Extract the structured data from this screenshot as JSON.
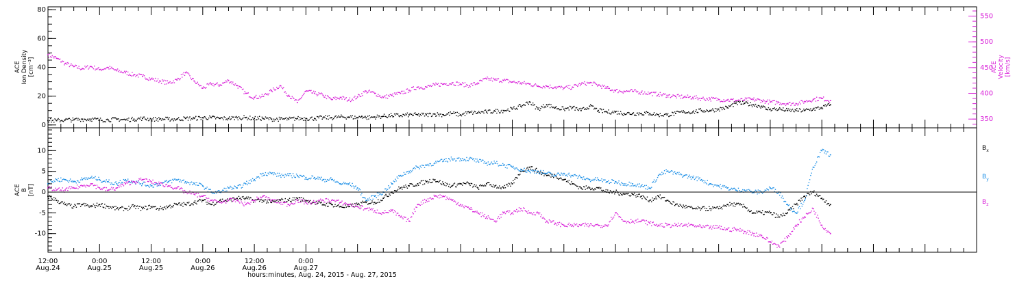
{
  "chart_data": [
    {
      "type": "scatter",
      "panel": "top",
      "ylabel_lines": [
        "ACE",
        "Ion Density",
        "[cm⁻³]"
      ],
      "ylim": [
        -2,
        82
      ],
      "yticks": [
        0,
        20,
        40,
        60,
        80
      ],
      "ylabel_right_lines": [
        "ACE",
        "Velocity",
        "[km/s]"
      ],
      "y2lim": [
        333,
        568
      ],
      "y2ticks": [
        350,
        400,
        450,
        500,
        550
      ],
      "grid": false,
      "series": [
        {
          "axis": "left",
          "color": "#000000",
          "x": [
            0,
            2,
            4,
            6,
            8,
            10,
            12,
            14,
            16,
            18,
            20,
            22,
            24,
            26,
            28,
            30,
            32,
            34,
            36,
            38,
            40,
            42,
            44,
            46,
            48,
            50,
            52,
            54,
            56,
            58,
            60,
            62,
            64,
            66,
            68,
            70,
            72,
            73,
            74,
            76,
            78,
            80,
            82,
            84,
            86,
            88,
            90,
            92,
            94,
            96,
            98,
            100,
            102,
            104,
            106,
            108,
            110,
            112,
            114,
            116,
            118,
            120,
            122,
            124,
            126,
            128,
            130,
            132,
            134,
            136,
            138,
            140,
            142,
            144,
            146,
            148,
            150,
            152,
            154,
            156,
            158,
            160,
            162,
            164,
            166,
            167,
            168,
            170,
            172,
            174,
            176,
            178,
            180,
            182
          ],
          "y": [
            3,
            3,
            3.5,
            3.5,
            4,
            4,
            3.5,
            3.5,
            4,
            3.5,
            4,
            4.5,
            4,
            4,
            4,
            4,
            4.5,
            4.5,
            5,
            5,
            4.5,
            4.5,
            5,
            5,
            4.5,
            4.5,
            4,
            4,
            4,
            4.5,
            4.5,
            4.5,
            5,
            5,
            5.5,
            5.5,
            5,
            6,
            5,
            5.5,
            6,
            6.5,
            6.5,
            7,
            7,
            7,
            7.5,
            7,
            8,
            7,
            8.5,
            8.5,
            9,
            9.5,
            10,
            11,
            13,
            16,
            11,
            14,
            12,
            11,
            12,
            10,
            13,
            10,
            9,
            9,
            8,
            8,
            8,
            8,
            7,
            7,
            8,
            9,
            9,
            10,
            10,
            11,
            12,
            15,
            15,
            14,
            13,
            11,
            11,
            11,
            10,
            10,
            10,
            11,
            12,
            14
          ]
        },
        {
          "axis": "right",
          "color": "#d81ed8",
          "x": [
            0,
            2,
            4,
            6,
            8,
            10,
            12,
            14,
            16,
            18,
            20,
            22,
            24,
            26,
            28,
            30,
            32,
            34,
            36,
            38,
            40,
            42,
            44,
            46,
            48,
            50,
            52,
            54,
            56,
            58,
            60,
            62,
            64,
            66,
            68,
            70,
            72,
            74,
            76,
            78,
            80,
            82,
            84,
            86,
            88,
            90,
            92,
            94,
            96,
            98,
            100,
            102,
            104,
            106,
            108,
            110,
            112,
            114,
            116,
            118,
            120,
            122,
            124,
            126,
            128,
            130,
            132,
            134,
            136,
            138,
            140,
            142,
            144,
            146,
            148,
            150,
            152,
            154,
            156,
            158,
            160,
            162,
            164,
            166,
            167,
            168,
            170,
            172,
            174,
            176,
            178,
            180,
            182
          ],
          "y": [
            475,
            468,
            458,
            452,
            448,
            452,
            446,
            450,
            444,
            440,
            436,
            433,
            428,
            424,
            420,
            426,
            440,
            424,
            410,
            418,
            416,
            425,
            415,
            400,
            392,
            394,
            405,
            415,
            396,
            382,
            404,
            400,
            396,
            388,
            392,
            387,
            393,
            404,
            400,
            392,
            396,
            400,
            406,
            412,
            412,
            416,
            418,
            420,
            418,
            415,
            420,
            428,
            426,
            425,
            422,
            420,
            418,
            414,
            414,
            412,
            410,
            412,
            418,
            420,
            416,
            410,
            405,
            404,
            404,
            402,
            400,
            398,
            396,
            394,
            393,
            392,
            390,
            389,
            388,
            387,
            386,
            387,
            388,
            386,
            384,
            383,
            382,
            380,
            380,
            384,
            388,
            390,
            386
          ]
        }
      ]
    },
    {
      "type": "scatter",
      "panel": "bottom",
      "ylabel_lines": [
        "ACE",
        "B",
        "[nT]"
      ],
      "ylim": [
        -14.5,
        15.5
      ],
      "yticks": [
        -10,
        -5,
        0,
        5,
        10
      ],
      "zero_line": true,
      "grid": false,
      "legend_position": "right",
      "legend_entries": [
        {
          "label": "B",
          "sub": "x",
          "color": "#000000"
        },
        {
          "label": "B",
          "sub": "y",
          "color": "#1a8ee6"
        },
        {
          "label": "B",
          "sub": "z",
          "color": "#d81ed8"
        }
      ],
      "series": [
        {
          "name": "Bx",
          "color": "#000000",
          "x": [
            0,
            2,
            4,
            6,
            8,
            10,
            12,
            14,
            16,
            18,
            20,
            22,
            24,
            26,
            28,
            30,
            32,
            34,
            36,
            38,
            40,
            42,
            44,
            46,
            48,
            50,
            52,
            54,
            56,
            58,
            60,
            62,
            64,
            66,
            68,
            70,
            72,
            74,
            76,
            78,
            80,
            82,
            84,
            86,
            88,
            90,
            92,
            94,
            96,
            98,
            100,
            102,
            104,
            106,
            108,
            110,
            112,
            114,
            116,
            118,
            120,
            122,
            124,
            126,
            128,
            130,
            132,
            134,
            136,
            138,
            140,
            142,
            144,
            146,
            148,
            150,
            152,
            154,
            156,
            158,
            160,
            162,
            164,
            166,
            168,
            170,
            172,
            174,
            176,
            178,
            180,
            182
          ],
          "y": [
            -1,
            -2,
            -3,
            -3.5,
            -3,
            -3.5,
            -3,
            -3.5,
            -4,
            -4,
            -3.5,
            -4,
            -3.5,
            -4,
            -3.5,
            -3,
            -3,
            -2.5,
            -2,
            -3,
            -2,
            -2,
            -1.5,
            -1.5,
            -2,
            -2,
            -2.5,
            -2,
            -2,
            -1.5,
            -2,
            -2.5,
            -3,
            -3,
            -3.5,
            -3.5,
            -3,
            -2.5,
            -2.5,
            -1.5,
            0,
            1,
            1.5,
            2,
            2.5,
            3,
            2,
            1.5,
            2,
            2,
            1,
            2,
            1.5,
            1,
            2,
            5,
            6,
            5,
            4,
            4,
            3,
            2,
            1,
            1,
            1,
            0,
            0,
            -0.5,
            -0.5,
            -1,
            -2,
            -1,
            -2,
            -3,
            -3.5,
            -4,
            -4,
            -4,
            -4,
            -3,
            -3,
            -3.5,
            -5,
            -5,
            -5,
            -6,
            -5,
            -3,
            -1,
            0,
            -1.5,
            -3
          ]
        },
        {
          "name": "By",
          "color": "#1a8ee6",
          "x": [
            0,
            2,
            4,
            6,
            8,
            10,
            12,
            14,
            16,
            18,
            20,
            22,
            24,
            26,
            28,
            30,
            32,
            34,
            36,
            38,
            40,
            42,
            44,
            46,
            48,
            50,
            52,
            54,
            56,
            58,
            60,
            62,
            64,
            66,
            68,
            70,
            72,
            74,
            76,
            78,
            80,
            82,
            84,
            86,
            88,
            90,
            92,
            94,
            96,
            98,
            100,
            102,
            104,
            106,
            108,
            110,
            112,
            114,
            116,
            118,
            120,
            122,
            124,
            126,
            128,
            130,
            132,
            134,
            136,
            138,
            140,
            142,
            144,
            146,
            148,
            150,
            152,
            154,
            156,
            158,
            160,
            162,
            164,
            166,
            168,
            170,
            172,
            174,
            176,
            178,
            180,
            182
          ],
          "y": [
            2,
            3,
            3,
            2.5,
            3,
            3.5,
            3,
            2.5,
            2,
            3,
            2.5,
            2,
            1.5,
            2,
            2.5,
            3,
            2.5,
            2,
            1.5,
            0,
            0,
            1,
            1,
            2,
            3,
            4.5,
            4.5,
            4,
            4,
            4,
            3.5,
            3.5,
            3,
            3,
            2,
            2,
            1,
            -2,
            -1,
            0,
            2,
            4,
            5,
            6,
            6.5,
            7,
            7.5,
            8,
            8,
            8,
            7.5,
            7,
            7,
            6.5,
            6,
            5.5,
            5,
            5,
            4.5,
            4,
            4.5,
            4,
            3.5,
            3,
            3,
            2.5,
            2.5,
            2,
            2,
            1.5,
            1,
            4,
            5,
            4.5,
            4,
            3.5,
            3,
            2,
            1.5,
            1,
            0.5,
            0.5,
            0,
            0,
            1,
            0,
            -3,
            -5,
            -2,
            6,
            10,
            9
          ]
        },
        {
          "name": "Bz",
          "color": "#d81ed8",
          "x": [
            0,
            2,
            4,
            6,
            8,
            10,
            12,
            14,
            16,
            18,
            20,
            22,
            24,
            26,
            28,
            30,
            32,
            34,
            36,
            38,
            40,
            42,
            44,
            46,
            48,
            50,
            52,
            54,
            56,
            58,
            60,
            62,
            64,
            66,
            68,
            70,
            72,
            74,
            76,
            78,
            80,
            82,
            84,
            86,
            88,
            90,
            92,
            94,
            96,
            98,
            100,
            102,
            104,
            106,
            108,
            110,
            112,
            114,
            116,
            118,
            120,
            122,
            124,
            126,
            128,
            130,
            132,
            134,
            136,
            138,
            140,
            142,
            144,
            146,
            148,
            150,
            152,
            154,
            156,
            158,
            160,
            162,
            164,
            166,
            168,
            170,
            172,
            174,
            176,
            178,
            180,
            182
          ],
          "y": [
            1,
            0.5,
            0.5,
            1,
            1.5,
            2,
            1,
            0.5,
            1,
            2,
            2.5,
            3,
            2.5,
            2,
            1.5,
            1,
            0,
            -0.5,
            -1,
            -2,
            -2.5,
            -2,
            -2,
            -3,
            -2,
            -1,
            -2,
            -2.5,
            -3,
            -2,
            -2.5,
            -2.5,
            -2,
            -2,
            -2.5,
            -3,
            -3.5,
            -4,
            -4.5,
            -5,
            -4.5,
            -6,
            -7,
            -3,
            -2,
            -1,
            -1,
            -2,
            -3,
            -4,
            -5,
            -6,
            -7,
            -5,
            -5,
            -4,
            -5,
            -5,
            -7,
            -7.5,
            -8,
            -8,
            -8,
            -8,
            -8,
            -8,
            -5,
            -7,
            -7,
            -7,
            -7.5,
            -8,
            -8,
            -8,
            -8,
            -8,
            -8.5,
            -8.5,
            -8.5,
            -9,
            -9,
            -9.5,
            -10,
            -10.5,
            -12,
            -13,
            -11,
            -8,
            -6,
            -4,
            -8,
            -10
          ]
        }
      ]
    }
  ],
  "x_axis": {
    "xlim": [
      0,
      216
    ],
    "major_ticks": [
      {
        "x": 0,
        "time": "12:00",
        "date": "Aug.24"
      },
      {
        "x": 12,
        "time": "0:00",
        "date": "Aug.25"
      },
      {
        "x": 24,
        "time": "12:00",
        "date": "Aug.25"
      },
      {
        "x": 36,
        "time": "0:00",
        "date": "Aug.26"
      },
      {
        "x": 48,
        "time": "12:00",
        "date": "Aug.26"
      },
      {
        "x": 60,
        "time": "0:00",
        "date": "Aug.27"
      }
    ],
    "xlabel": "hours:minutes, Aug. 24, 2015 - Aug. 27, 2015"
  }
}
